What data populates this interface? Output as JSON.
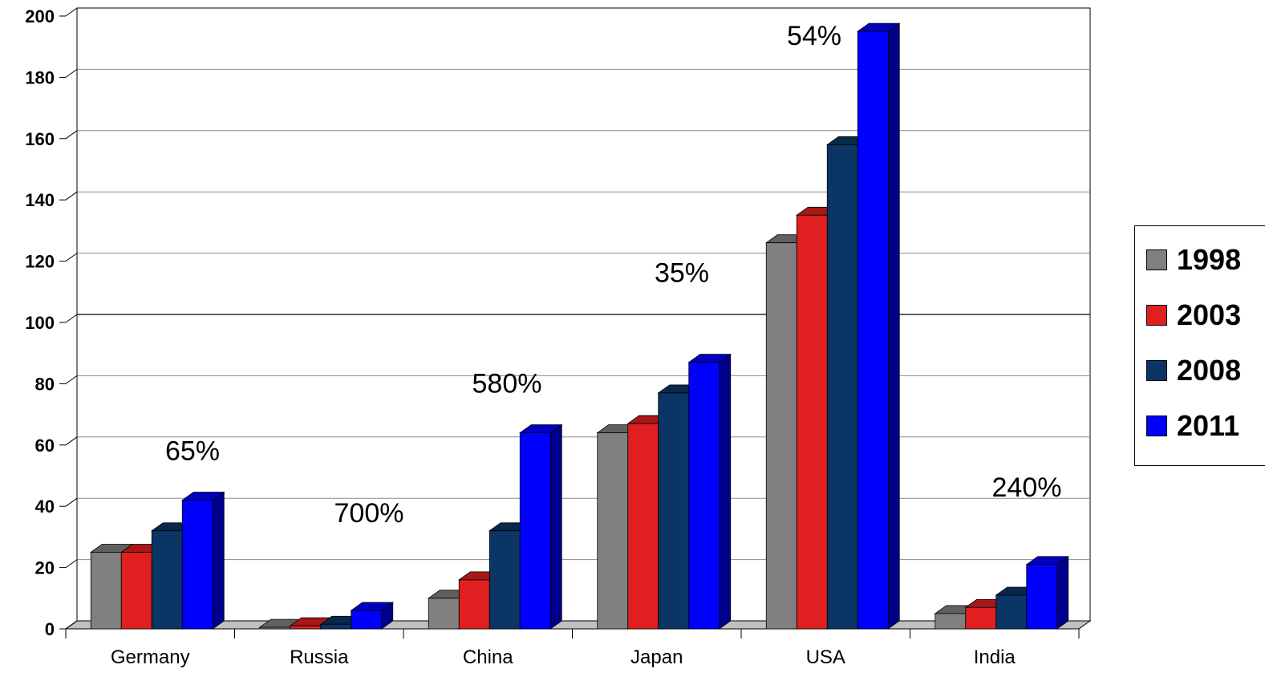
{
  "chart_data": {
    "type": "bar",
    "title": "",
    "xlabel": "",
    "ylabel": "",
    "ylim": [
      0,
      200
    ],
    "yticks": [
      0,
      20,
      40,
      60,
      80,
      100,
      120,
      140,
      160,
      180,
      200
    ],
    "categories": [
      "Germany",
      "Russia",
      "China",
      "Japan",
      "USA",
      "India"
    ],
    "series": [
      {
        "name": "1998",
        "color": "#808080",
        "values": [
          25,
          0.5,
          10,
          64,
          126,
          5
        ]
      },
      {
        "name": "2003",
        "color": "#e02020",
        "values": [
          25,
          1,
          16,
          67,
          135,
          7
        ]
      },
      {
        "name": "2008",
        "color": "#0a3565",
        "values": [
          32,
          1.5,
          32,
          77,
          158,
          11
        ]
      },
      {
        "name": "2011",
        "color": "#0000ff",
        "values": [
          42,
          6,
          64,
          87,
          195,
          21
        ]
      }
    ],
    "annotations": [
      "65%",
      "700%",
      "580%",
      "35%",
      "54%",
      "240%"
    ],
    "grid": true,
    "legend": "right"
  }
}
